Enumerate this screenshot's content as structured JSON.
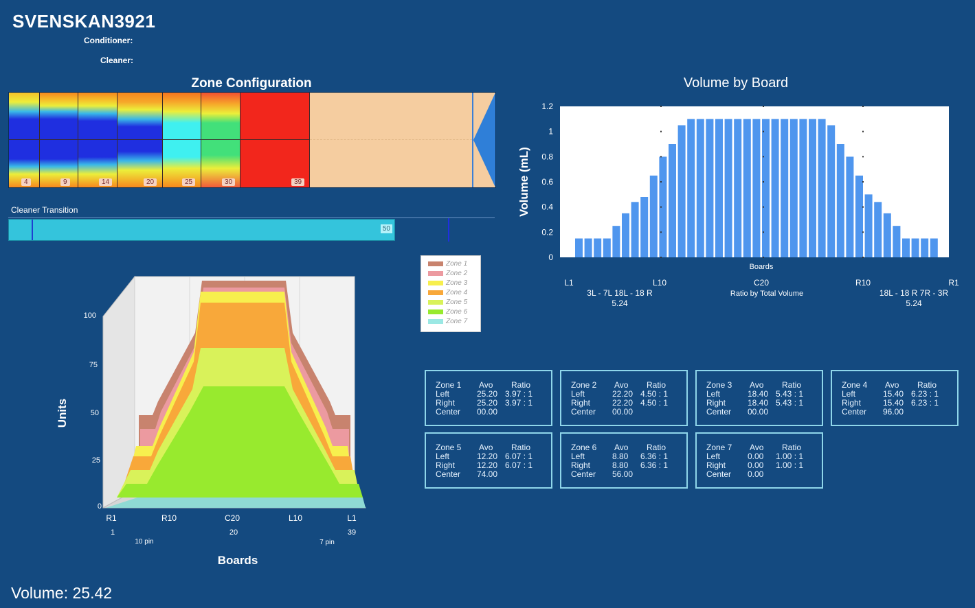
{
  "header": {
    "title": "SVENSKAN3921",
    "conditioner_label": "Conditioner:",
    "cleaner_label": "Cleaner:"
  },
  "zone_config": {
    "title": "Zone Configuration",
    "board_labels": [
      "4",
      "9",
      "14",
      "20",
      "25",
      "30",
      "39"
    ]
  },
  "cleaner_transition": {
    "label": "Cleaner Transition",
    "value": "50"
  },
  "volume_chart": {
    "title": "Volume by Board",
    "ylabel": "Volume (mL)",
    "xlabel": "Boards",
    "x_markers": [
      "L1",
      "L10",
      "C20",
      "R10",
      "R1"
    ],
    "left_range": "3L - 7L   18L - 18 R",
    "left_ratio": "5.24",
    "center_caption": "Ratio by Total Volume",
    "right_range": "18L - 18 R   7R - 3R",
    "right_ratio": "5.24"
  },
  "surface_chart": {
    "ylabel": "Units",
    "xlabel": "Boards",
    "y_ticks": [
      "100",
      "75",
      "50",
      "25",
      "0"
    ],
    "x_top": [
      "R1",
      "R10",
      "C20",
      "L10",
      "L1"
    ],
    "x_bottom": [
      "1",
      "20",
      "39"
    ],
    "pins_left": "10 pin",
    "pins_right": "7 pin"
  },
  "legend": {
    "items": [
      {
        "label": "Zone 1",
        "color": "#c8836e"
      },
      {
        "label": "Zone 2",
        "color": "#ec9aa0"
      },
      {
        "label": "Zone 3",
        "color": "#f7ef4e"
      },
      {
        "label": "Zone 4",
        "color": "#f8a83a"
      },
      {
        "label": "Zone 5",
        "color": "#d9f25a"
      },
      {
        "label": "Zone 6",
        "color": "#98ea2e"
      },
      {
        "label": "Zone 7",
        "color": "#9be8e4"
      }
    ]
  },
  "zones": {
    "col_avo": "Avo",
    "col_ratio": "Ratio",
    "row_left": "Left",
    "row_right": "Right",
    "row_center": "Center",
    "cards": [
      {
        "name": "Zone 1",
        "left_avo": "25.20",
        "left_ratio": "3.97 : 1",
        "right_avo": "25.20",
        "right_ratio": "3.97 : 1",
        "center": "00.00"
      },
      {
        "name": "Zone 2",
        "left_avo": "22.20",
        "left_ratio": "4.50 : 1",
        "right_avo": "22.20",
        "right_ratio": "4.50 : 1",
        "center": "00.00"
      },
      {
        "name": "Zone 3",
        "left_avo": "18.40",
        "left_ratio": "5.43 : 1",
        "right_avo": "18.40",
        "right_ratio": "5.43 : 1",
        "center": "00.00"
      },
      {
        "name": "Zone 4",
        "left_avo": "15.40",
        "left_ratio": "6.23 : 1",
        "right_avo": "15.40",
        "right_ratio": "6.23 : 1",
        "center": "96.00"
      },
      {
        "name": "Zone 5",
        "left_avo": "12.20",
        "left_ratio": "6.07 : 1",
        "right_avo": "12.20",
        "right_ratio": "6.07 : 1",
        "center": "74.00"
      },
      {
        "name": "Zone 6",
        "left_avo": "8.80",
        "left_ratio": "6.36 : 1",
        "right_avo": "8.80",
        "right_ratio": "6.36 : 1",
        "center": "56.00"
      },
      {
        "name": "Zone 7",
        "left_avo": "0.00",
        "left_ratio": "1.00 : 1",
        "right_avo": "0.00",
        "right_ratio": "1.00 : 1",
        "center": "0.00"
      }
    ]
  },
  "footer": {
    "volume": "Volume: 25.42"
  },
  "chart_data": {
    "type": "bar",
    "title": "Volume by Board",
    "xlabel": "Boards",
    "ylabel": "Volume (mL)",
    "ylim": [
      0,
      1.2
    ],
    "yticks": [
      "0",
      "0.2",
      "0.4",
      "0.6",
      "0.8",
      "1",
      "1.2"
    ],
    "grid": false,
    "values": [
      0.15,
      0.15,
      0.15,
      0.15,
      0.25,
      0.35,
      0.44,
      0.48,
      0.65,
      0.8,
      0.9,
      1.05,
      1.1,
      1.1,
      1.1,
      1.1,
      1.1,
      1.1,
      1.1,
      1.1,
      1.1,
      1.1,
      1.1,
      1.1,
      1.1,
      1.1,
      1.1,
      1.05,
      0.9,
      0.8,
      0.65,
      0.5,
      0.44,
      0.35,
      0.25,
      0.15,
      0.15,
      0.15,
      0.15
    ]
  }
}
